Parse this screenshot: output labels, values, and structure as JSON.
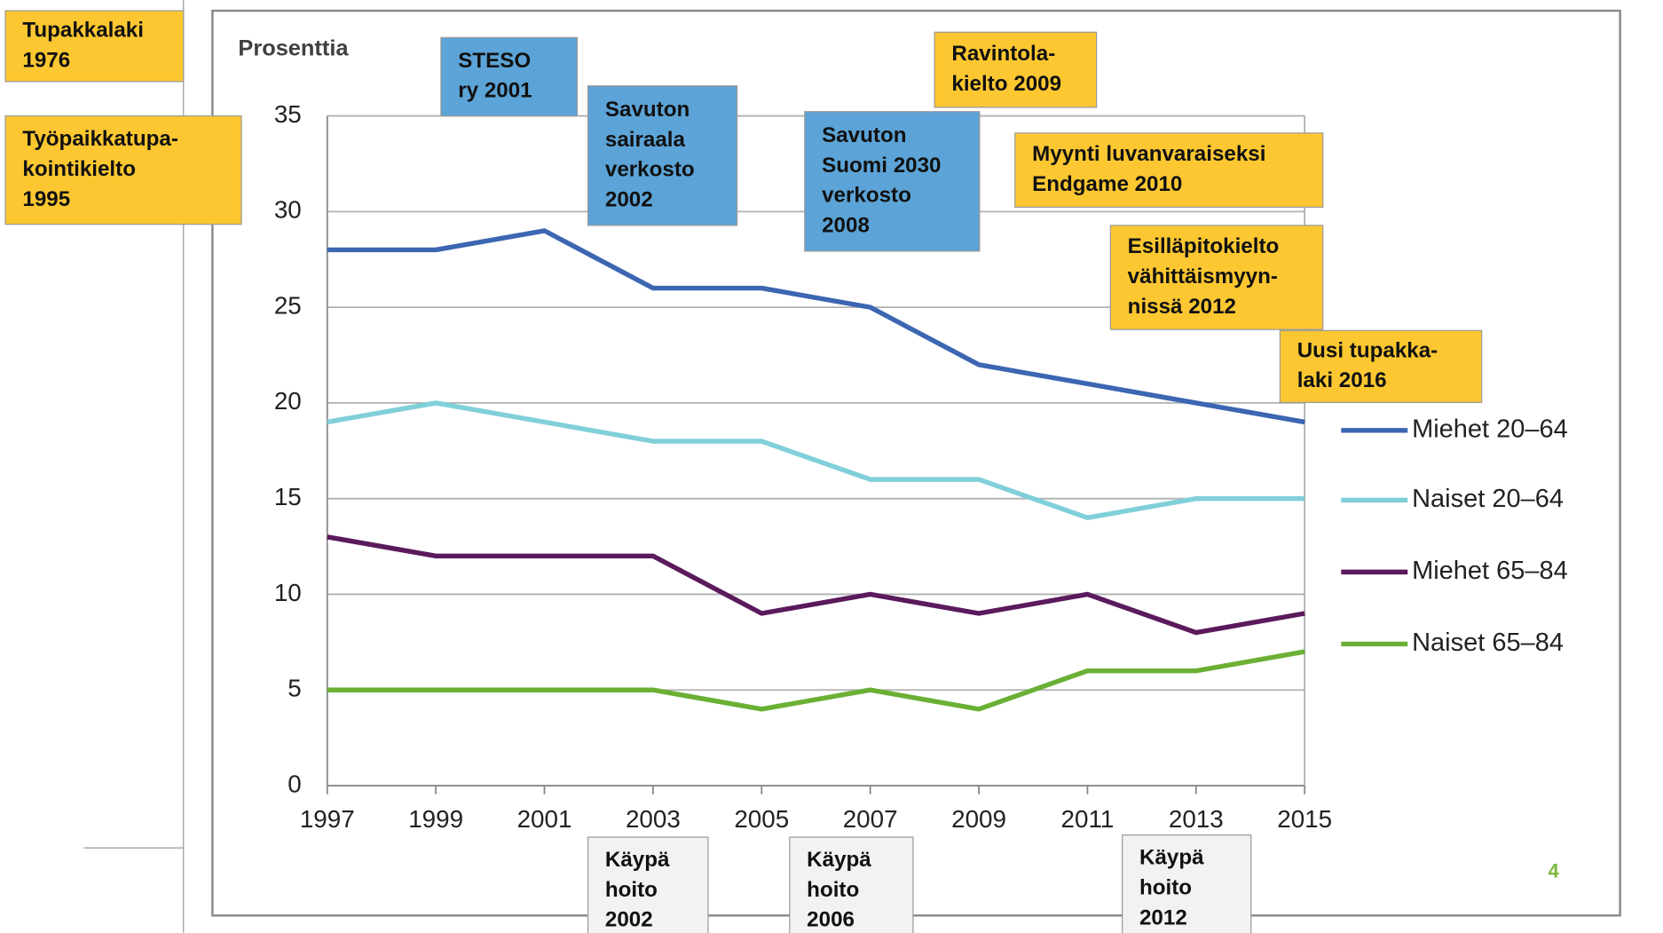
{
  "chart_data": {
    "type": "line",
    "y_label": "Prosenttia",
    "x": [
      1997,
      1999,
      2001,
      2003,
      2005,
      2007,
      2009,
      2011,
      2013,
      2015
    ],
    "xlim": [
      1997,
      2015
    ],
    "ylim": [
      0,
      35
    ],
    "yticks": [
      0,
      5,
      10,
      15,
      20,
      25,
      30,
      35
    ],
    "grid": true,
    "series": [
      {
        "name": "Miehet 20–64",
        "color": "#3c66b1",
        "values": [
          28,
          28,
          29,
          26,
          26,
          25,
          22,
          21,
          20,
          19
        ]
      },
      {
        "name": "Naiset 20–64",
        "color": "#80cfd9",
        "values": [
          19,
          20,
          19,
          18,
          18,
          16,
          16,
          14,
          15,
          15
        ]
      },
      {
        "name": "Miehet 65–84",
        "color": "#5a1a5c",
        "values": [
          13,
          12,
          12,
          12,
          9,
          10,
          9,
          10,
          8,
          9
        ]
      },
      {
        "name": "Naiset 65–84",
        "color": "#6ab035",
        "values": [
          5,
          5,
          5,
          5,
          4,
          5,
          4,
          6,
          6,
          7
        ]
      }
    ],
    "annotations": [
      {
        "lines": [
          "Tupakkalaki",
          "1976"
        ],
        "color": "#fdc731"
      },
      {
        "lines": [
          "Työpaikkatupa-",
          "kointikielto",
          "1995"
        ],
        "color": "#fdc731"
      },
      {
        "lines": [
          "STESO",
          "ry 2001"
        ],
        "color": "#5ca4d7"
      },
      {
        "lines": [
          "Savuton",
          "sairaala",
          "verkosto",
          "2002"
        ],
        "color": "#5ca4d7"
      },
      {
        "lines": [
          "Savuton",
          "Suomi 2030",
          "verkosto",
          "2008"
        ],
        "color": "#5ca4d7"
      },
      {
        "lines": [
          "Ravintola-",
          "kielto 2009"
        ],
        "color": "#fdc731"
      },
      {
        "lines": [
          "Myynti luvanvaraiseksi",
          "Endgame 2010"
        ],
        "color": "#fdc731"
      },
      {
        "lines": [
          "Esilläpitokielto",
          "vähittäismyyn-",
          "nissä 2012"
        ],
        "color": "#fdc731"
      },
      {
        "lines": [
          "Uusi tupakka-",
          "laki 2016"
        ],
        "color": "#fdc731"
      },
      {
        "lines": [
          "Käypä",
          "hoito",
          "2002"
        ],
        "color": "#f2f2f2"
      },
      {
        "lines": [
          "Käypä",
          "hoito",
          "2006"
        ],
        "color": "#f2f2f2"
      },
      {
        "lines": [
          "Käypä",
          "hoito",
          "2012"
        ],
        "color": "#f2f2f2"
      }
    ],
    "page_number": "4"
  }
}
